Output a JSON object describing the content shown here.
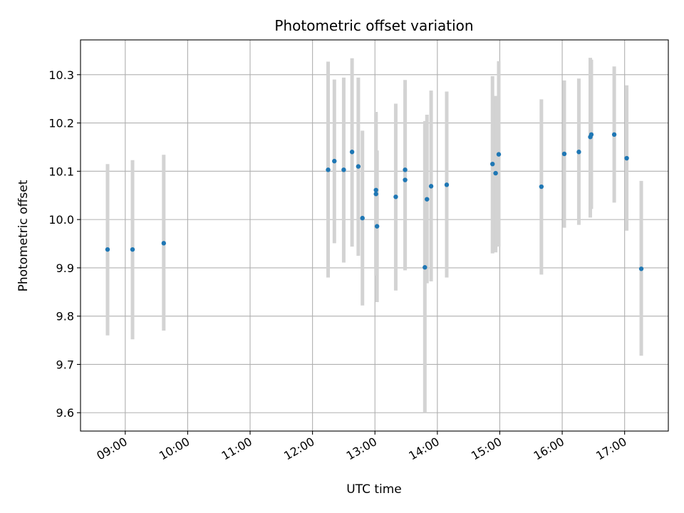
{
  "chart_data": {
    "type": "scatter",
    "title": "Photometric offset variation",
    "xlabel": "UTC time",
    "ylabel": "Photometric offset",
    "x_unit": "UTC time (HH:MM)",
    "xlim": [
      "08:17",
      "17:42"
    ],
    "ylim": [
      9.562,
      10.372
    ],
    "grid": true,
    "x_ticks": [
      "09:00",
      "10:00",
      "11:00",
      "12:00",
      "13:00",
      "14:00",
      "15:00",
      "16:00",
      "17:00"
    ],
    "y_ticks": [
      9.6,
      9.7,
      9.8,
      9.9,
      10.0,
      10.1,
      10.2,
      10.3
    ],
    "y_tick_labels": [
      "9.6",
      "9.7",
      "9.8",
      "9.9",
      "10.0",
      "10.1",
      "10.2",
      "10.3"
    ],
    "colors": {
      "marker": "#1f77b4",
      "errorbar": "#d3d3d3",
      "grid": "#b0b0b0"
    },
    "points": [
      {
        "t": "08:43",
        "y": 9.938,
        "lo": 9.76,
        "hi": 10.115
      },
      {
        "t": "09:07",
        "y": 9.938,
        "lo": 9.752,
        "hi": 10.123
      },
      {
        "t": "09:37",
        "y": 9.951,
        "lo": 9.77,
        "hi": 10.134
      },
      {
        "t": "12:15",
        "y": 10.103,
        "lo": 9.88,
        "hi": 10.327
      },
      {
        "t": "12:21",
        "y": 10.121,
        "lo": 9.951,
        "hi": 10.29
      },
      {
        "t": "12:30",
        "y": 10.103,
        "lo": 9.911,
        "hi": 10.294
      },
      {
        "t": "12:38",
        "y": 10.14,
        "lo": 9.944,
        "hi": 10.334
      },
      {
        "t": "12:44",
        "y": 10.11,
        "lo": 9.925,
        "hi": 10.294
      },
      {
        "t": "12:48",
        "y": 10.003,
        "lo": 9.822,
        "hi": 10.184
      },
      {
        "t": "13:01",
        "y": 10.053,
        "lo": 9.884,
        "hi": 10.223
      },
      {
        "t": "13:01",
        "y": 10.061,
        "lo": 9.9,
        "hi": 10.22
      },
      {
        "t": "13:02",
        "y": 9.986,
        "lo": 9.829,
        "hi": 10.143
      },
      {
        "t": "13:20",
        "y": 10.047,
        "lo": 9.853,
        "hi": 10.24
      },
      {
        "t": "13:29",
        "y": 10.103,
        "lo": 9.895,
        "hi": 10.289
      },
      {
        "t": "13:29",
        "y": 10.082,
        "lo": 9.895,
        "hi": 10.27
      },
      {
        "t": "13:48",
        "y": 9.901,
        "lo": 9.6,
        "hi": 10.204
      },
      {
        "t": "13:50",
        "y": 10.042,
        "lo": 9.868,
        "hi": 10.217
      },
      {
        "t": "13:54",
        "y": 10.069,
        "lo": 9.872,
        "hi": 10.267
      },
      {
        "t": "14:09",
        "y": 10.072,
        "lo": 9.88,
        "hi": 10.265
      },
      {
        "t": "14:53",
        "y": 10.115,
        "lo": 9.93,
        "hi": 10.297
      },
      {
        "t": "14:56",
        "y": 10.096,
        "lo": 9.932,
        "hi": 10.256
      },
      {
        "t": "14:59",
        "y": 10.135,
        "lo": 9.944,
        "hi": 10.328
      },
      {
        "t": "15:40",
        "y": 10.068,
        "lo": 9.886,
        "hi": 10.249
      },
      {
        "t": "16:02",
        "y": 10.136,
        "lo": 9.983,
        "hi": 10.288
      },
      {
        "t": "16:16",
        "y": 10.14,
        "lo": 9.989,
        "hi": 10.292
      },
      {
        "t": "16:27",
        "y": 10.171,
        "lo": 10.004,
        "hi": 10.335
      },
      {
        "t": "16:28",
        "y": 10.176,
        "lo": 10.022,
        "hi": 10.331
      },
      {
        "t": "16:50",
        "y": 10.176,
        "lo": 10.035,
        "hi": 10.317
      },
      {
        "t": "17:02",
        "y": 10.127,
        "lo": 9.977,
        "hi": 10.278
      },
      {
        "t": "17:16",
        "y": 9.898,
        "lo": 9.718,
        "hi": 10.08
      }
    ]
  }
}
